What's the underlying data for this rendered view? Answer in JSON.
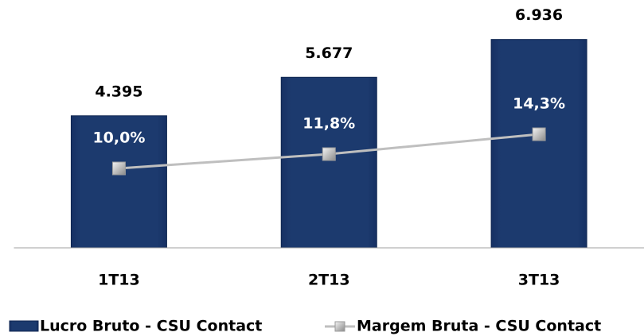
{
  "chart_data": {
    "type": "bar-line",
    "categories": [
      "1T13",
      "2T13",
      "3T13"
    ],
    "series": [
      {
        "name": "Lucro Bruto - CSU Contact",
        "type": "bar",
        "color": "#1c3a6e",
        "values": [
          4395,
          5677,
          6936
        ],
        "value_labels": [
          "4.395",
          "5.677",
          "6.936"
        ]
      },
      {
        "name": "Margem Bruta - CSU Contact",
        "type": "line",
        "axis": "y2",
        "color": "#bfbfbf",
        "values": [
          10.0,
          11.8,
          14.3
        ],
        "value_labels": [
          "10,0%",
          "11,8%",
          "14,3%"
        ]
      }
    ],
    "ylim": [
      0,
      7720
    ],
    "y2lim": [
      0,
      29.2
    ],
    "legend": "bottom"
  }
}
